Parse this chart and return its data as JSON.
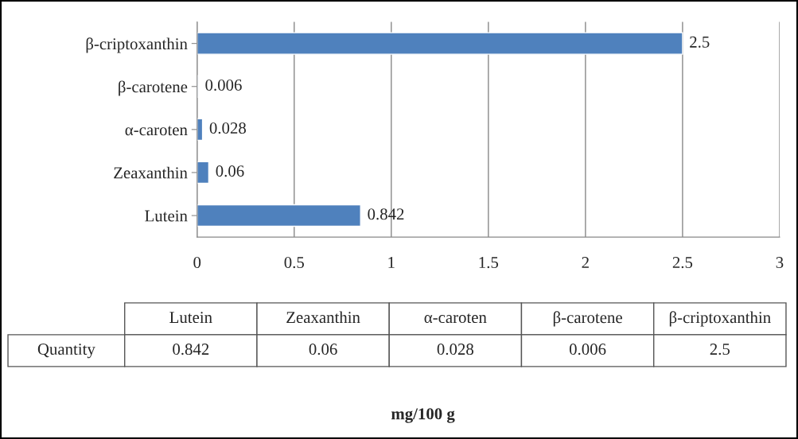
{
  "chart_data": {
    "type": "bar",
    "orientation": "horizontal",
    "annotations": [
      "mg/100 g"
    ],
    "categories": [
      "β-criptoxanthin",
      "β-carotene",
      "α-caroten",
      "Zeaxanthin",
      "Lutein"
    ],
    "series": [
      {
        "name": "Quantity",
        "color": "#4f81bd",
        "values": [
          2.5,
          0.006,
          0.028,
          0.06,
          0.842
        ],
        "value_labels": [
          "2.5",
          "0.006",
          "0.028",
          "0.06",
          "0.842"
        ]
      }
    ],
    "xlim": [
      0,
      3
    ],
    "xticks": [
      0,
      0.5,
      1,
      1.5,
      2,
      2.5,
      3
    ],
    "grid": "x",
    "legend": false
  }
}
